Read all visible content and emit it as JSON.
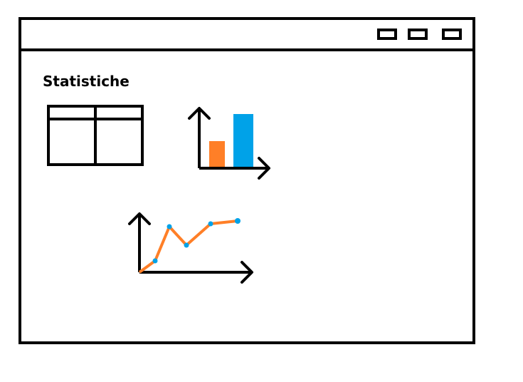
{
  "page": {
    "title": "Statistiche"
  },
  "titlebar": {
    "buttons": [
      "minimize-button",
      "maximize-button",
      "close-button"
    ]
  },
  "icons": [
    {
      "name": "table-icon"
    },
    {
      "name": "bar-chart-icon"
    },
    {
      "name": "line-chart-icon"
    }
  ],
  "colors": {
    "outline": "#000000",
    "bar_small": "#ff7f27",
    "bar_tall": "#00a2e8",
    "line": "#ff7f27",
    "points": "#00a2e8"
  }
}
